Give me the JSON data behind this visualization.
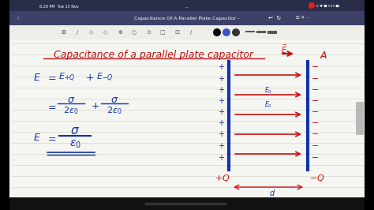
{
  "title": "Capacitance of a parallel plate capacitor",
  "title_color": "#bb1111",
  "toolbar_bg": "#3d4168",
  "statusbar_bg": "#2a2d4a",
  "notebook_bg": "#f5f5f2",
  "blue_color": "#1133aa",
  "red_color": "#cc1111",
  "outer_bg": "#000000",
  "figsize": [
    4.74,
    2.66
  ],
  "dpi": 100
}
